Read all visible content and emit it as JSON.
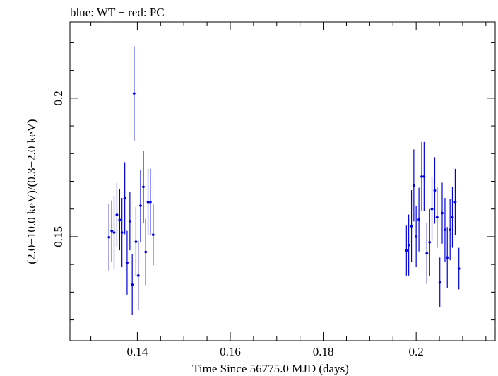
{
  "chart_data": {
    "type": "scatter",
    "title": "blue: WT − red: PC",
    "xlabel": "Time Since 56775.0 MJD (days)",
    "ylabel": "(2.0−10.0 keV)/(0.3−2.0 keV)",
    "xlim": [
      0.1255,
      0.217
    ],
    "ylim": [
      0.1125,
      0.2275
    ],
    "x_ticks": [
      0.14,
      0.16,
      0.18,
      0.2
    ],
    "x_tick_labels": [
      "0.14",
      "0.16",
      "0.18",
      "0.2"
    ],
    "y_ticks": [
      0.15,
      0.2
    ],
    "y_tick_labels": [
      "0.15",
      "0.2"
    ],
    "grid": false,
    "series": [
      {
        "color": "#0000e0",
        "x_error": 0.0003,
        "points": [
          {
            "x": 0.1339,
            "y": 0.1498,
            "err": 0.012
          },
          {
            "x": 0.1345,
            "y": 0.1521,
            "err": 0.011
          },
          {
            "x": 0.135,
            "y": 0.1515,
            "err": 0.013
          },
          {
            "x": 0.1356,
            "y": 0.1579,
            "err": 0.0115
          },
          {
            "x": 0.1362,
            "y": 0.1561,
            "err": 0.011
          },
          {
            "x": 0.1367,
            "y": 0.1515,
            "err": 0.0125
          },
          {
            "x": 0.1373,
            "y": 0.1639,
            "err": 0.013
          },
          {
            "x": 0.1378,
            "y": 0.1406,
            "err": 0.0115
          },
          {
            "x": 0.1384,
            "y": 0.1556,
            "err": 0.0105
          },
          {
            "x": 0.1389,
            "y": 0.1327,
            "err": 0.011
          },
          {
            "x": 0.1393,
            "y": 0.2017,
            "err": 0.017
          },
          {
            "x": 0.1397,
            "y": 0.1482,
            "err": 0.0125
          },
          {
            "x": 0.1402,
            "y": 0.136,
            "err": 0.0125
          },
          {
            "x": 0.1407,
            "y": 0.1612,
            "err": 0.013
          },
          {
            "x": 0.1413,
            "y": 0.168,
            "err": 0.013
          },
          {
            "x": 0.1418,
            "y": 0.1445,
            "err": 0.012
          },
          {
            "x": 0.1423,
            "y": 0.1625,
            "err": 0.012
          },
          {
            "x": 0.1428,
            "y": 0.1625,
            "err": 0.012
          },
          {
            "x": 0.1434,
            "y": 0.1507,
            "err": 0.011
          },
          {
            "x": 0.1979,
            "y": 0.145,
            "err": 0.009
          },
          {
            "x": 0.1984,
            "y": 0.147,
            "err": 0.011
          },
          {
            "x": 0.199,
            "y": 0.1538,
            "err": 0.013
          },
          {
            "x": 0.1995,
            "y": 0.1685,
            "err": 0.013
          },
          {
            "x": 0.2,
            "y": 0.15,
            "err": 0.011
          },
          {
            "x": 0.2006,
            "y": 0.1562,
            "err": 0.0115
          },
          {
            "x": 0.2012,
            "y": 0.1717,
            "err": 0.0125
          },
          {
            "x": 0.2017,
            "y": 0.1717,
            "err": 0.0125
          },
          {
            "x": 0.2023,
            "y": 0.144,
            "err": 0.011
          },
          {
            "x": 0.2029,
            "y": 0.148,
            "err": 0.012
          },
          {
            "x": 0.2034,
            "y": 0.16,
            "err": 0.0115
          },
          {
            "x": 0.204,
            "y": 0.1667,
            "err": 0.012
          },
          {
            "x": 0.2045,
            "y": 0.157,
            "err": 0.011
          },
          {
            "x": 0.2051,
            "y": 0.1335,
            "err": 0.009
          },
          {
            "x": 0.2056,
            "y": 0.1585,
            "err": 0.011
          },
          {
            "x": 0.2062,
            "y": 0.1525,
            "err": 0.0115
          },
          {
            "x": 0.2067,
            "y": 0.1425,
            "err": 0.011
          },
          {
            "x": 0.2073,
            "y": 0.1525,
            "err": 0.011
          },
          {
            "x": 0.2078,
            "y": 0.157,
            "err": 0.011
          },
          {
            "x": 0.2084,
            "y": 0.1625,
            "err": 0.012
          },
          {
            "x": 0.2092,
            "y": 0.1385,
            "err": 0.0075
          }
        ]
      }
    ]
  }
}
